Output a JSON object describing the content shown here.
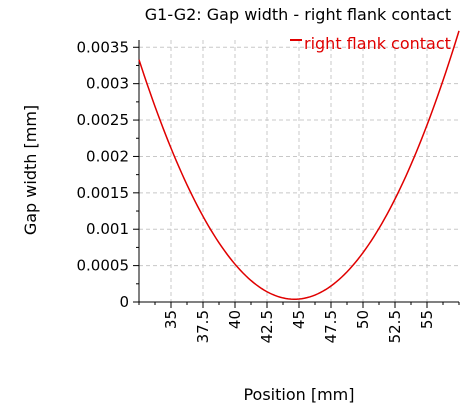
{
  "chart_data": {
    "type": "line",
    "title": "G1-G2: Gap width - right flank contact",
    "xlabel": "Position [mm]",
    "ylabel": "Gap width [mm]",
    "xlim": [
      32.5,
      57.5
    ],
    "ylim": [
      0,
      0.0036
    ],
    "x_ticks": [
      35,
      37.5,
      40,
      42.5,
      45,
      47.5,
      50,
      52.5,
      55
    ],
    "x_tick_labels": [
      "35",
      "37.5",
      "40",
      "42.5",
      "45",
      "47.5",
      "50",
      "52.5",
      "55"
    ],
    "y_ticks": [
      0,
      0.0005,
      0.001,
      0.0015,
      0.002,
      0.0025,
      0.003,
      0.0035
    ],
    "y_tick_labels": [
      "0",
      "0.0005",
      "0.001",
      "0.0015",
      "0.002",
      "0.0025",
      "0.003",
      "0.0035"
    ],
    "grid": true,
    "legend_position": "top-right",
    "series": [
      {
        "name": "right flank contact",
        "color": "#e00000",
        "x": [
          32.5,
          35,
          37.5,
          40,
          42.5,
          44.5,
          47.5,
          50,
          52.5,
          55,
          57.5
        ],
        "y": [
          0.0033,
          0.0022,
          0.00118,
          0.00049,
          9e-05,
          0.0,
          0.0002,
          0.00068,
          0.0015,
          0.00255,
          0.0036
        ]
      }
    ]
  }
}
